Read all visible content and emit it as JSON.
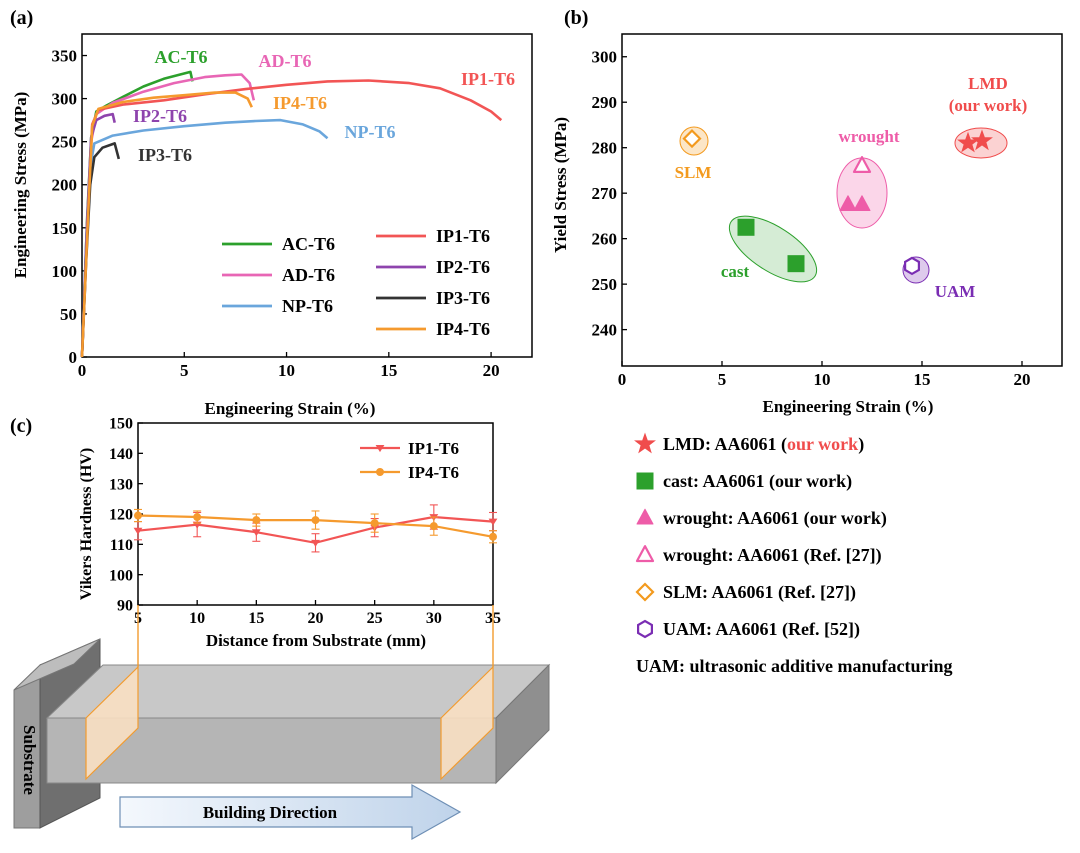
{
  "colors": {
    "ac": "#2ca02c",
    "ad": "#e866b5",
    "np": "#6aa6dc",
    "ip1": "#f25555",
    "ip2": "#8e44ad",
    "ip3": "#333333",
    "ip4": "#f59a2e",
    "lmd": "#f04c4c",
    "cast": "#2ca02c",
    "wrought": "#ee5ca8",
    "slm": "#f39a1e",
    "uam": "#7a2db3"
  },
  "chart_data": [
    {
      "id": "a",
      "panel_label": "(a)",
      "type": "line",
      "xlabel": "Engineering Strain (%)",
      "ylabel": "Engineering Stress (MPa)",
      "xlim": [
        0,
        22
      ],
      "ylim": [
        0,
        375
      ],
      "xticks": [
        0,
        5,
        10,
        15,
        20
      ],
      "yticks": [
        0,
        50,
        100,
        150,
        200,
        250,
        300,
        350
      ],
      "series": [
        {
          "key": "ac",
          "name": "AC-T6",
          "color": "#2ca02c",
          "points": [
            [
              0,
              0
            ],
            [
              0.25,
              160
            ],
            [
              0.45,
              255
            ],
            [
              0.7,
              285
            ],
            [
              1.2,
              292
            ],
            [
              2,
              302
            ],
            [
              3,
              314
            ],
            [
              4,
              323
            ],
            [
              4.8,
              328
            ],
            [
              5.3,
              331
            ],
            [
              5.4,
              320
            ]
          ]
        },
        {
          "key": "ad",
          "name": "AD-T6",
          "color": "#e866b5",
          "points": [
            [
              0,
              0
            ],
            [
              0.25,
              150
            ],
            [
              0.45,
              250
            ],
            [
              0.7,
              282
            ],
            [
              1.5,
              295
            ],
            [
              3,
              308
            ],
            [
              4.5,
              318
            ],
            [
              6,
              325
            ],
            [
              7,
              327
            ],
            [
              7.8,
              328
            ],
            [
              8.2,
              318
            ],
            [
              8.4,
              298
            ]
          ]
        },
        {
          "key": "np",
          "name": "NP-T6",
          "color": "#6aa6dc",
          "points": [
            [
              0,
              0
            ],
            [
              0.2,
              130
            ],
            [
              0.4,
              220
            ],
            [
              0.6,
              248
            ],
            [
              1.5,
              257
            ],
            [
              3,
              263
            ],
            [
              5,
              268
            ],
            [
              7,
              272
            ],
            [
              8.5,
              274
            ],
            [
              9.7,
              275
            ],
            [
              10.8,
              270
            ],
            [
              11.6,
              262
            ],
            [
              12,
              254
            ]
          ]
        },
        {
          "key": "ip1",
          "name": "IP1-T6",
          "color": "#f25555",
          "points": [
            [
              0,
              0
            ],
            [
              0.3,
              170
            ],
            [
              0.5,
              270
            ],
            [
              0.8,
              287
            ],
            [
              2,
              293
            ],
            [
              4,
              298
            ],
            [
              6,
              305
            ],
            [
              8,
              311
            ],
            [
              10,
              316
            ],
            [
              12,
              320
            ],
            [
              14,
              321
            ],
            [
              16,
              318
            ],
            [
              17.5,
              312
            ],
            [
              19,
              298
            ],
            [
              20,
              285
            ],
            [
              20.5,
              275
            ]
          ]
        },
        {
          "key": "ip2",
          "name": "IP2-T6",
          "color": "#8e44ad",
          "points": [
            [
              0,
              0
            ],
            [
              0.25,
              155
            ],
            [
              0.45,
              255
            ],
            [
              0.7,
              275
            ],
            [
              1.1,
              280
            ],
            [
              1.5,
              282
            ],
            [
              1.6,
              272
            ]
          ]
        },
        {
          "key": "ip3",
          "name": "IP3-T6",
          "color": "#333333",
          "points": [
            [
              0,
              0
            ],
            [
              0.2,
              110
            ],
            [
              0.4,
              200
            ],
            [
              0.6,
              232
            ],
            [
              1,
              243
            ],
            [
              1.6,
              248
            ],
            [
              1.8,
              230
            ]
          ]
        },
        {
          "key": "ip4",
          "name": "IP4-T6",
          "color": "#f59a2e",
          "points": [
            [
              0,
              0
            ],
            [
              0.3,
              165
            ],
            [
              0.5,
              268
            ],
            [
              0.8,
              288
            ],
            [
              2,
              296
            ],
            [
              3.5,
              301
            ],
            [
              5,
              304
            ],
            [
              6.5,
              307
            ],
            [
              7.5,
              307
            ],
            [
              8.1,
              300
            ],
            [
              8.3,
              290
            ]
          ]
        }
      ],
      "annotations": [
        {
          "key": "ac",
          "text": "AC-T6"
        },
        {
          "key": "ad",
          "text": "AD-T6"
        },
        {
          "key": "ip1",
          "text": "IP1-T6"
        },
        {
          "key": "ip4",
          "text": "IP4-T6"
        },
        {
          "key": "ip2",
          "text": "IP2-T6"
        },
        {
          "key": "np",
          "text": "NP-T6"
        },
        {
          "key": "ip3",
          "text": "IP3-T6"
        }
      ],
      "legend": {
        "placement": "bottom-right",
        "columns": [
          [
            "ac",
            "ad",
            "np"
          ],
          [
            "ip1",
            "ip2",
            "ip3",
            "ip4"
          ]
        ]
      }
    },
    {
      "id": "b",
      "panel_label": "(b)",
      "type": "scatter",
      "xlabel": "Engineering Strain (%)",
      "ylabel": "Yield Stress (MPa)",
      "xlim": [
        0,
        22
      ],
      "ylim": [
        232,
        305
      ],
      "xticks": [
        0,
        5,
        10,
        15,
        20
      ],
      "yticks": [
        240,
        250,
        260,
        270,
        280,
        290,
        300
      ],
      "groups": [
        {
          "key": "lmd",
          "name": "LMD",
          "label_line2": "(our work)",
          "marker": "star",
          "filled": true,
          "points": [
            [
              17.3,
              281
            ],
            [
              18.0,
              281.5
            ]
          ]
        },
        {
          "key": "cast",
          "name": "cast",
          "marker": "square",
          "filled": true,
          "points": [
            [
              6.2,
              262.5
            ],
            [
              8.7,
              254.5
            ]
          ]
        },
        {
          "key": "wrought",
          "name": "wrought",
          "marker": "triangle",
          "filled": true,
          "points": [
            [
              11.3,
              267.5
            ],
            [
              12.0,
              267.5
            ]
          ]
        },
        {
          "key": "wrought-ref",
          "name": "wrought",
          "marker": "triangle",
          "filled": false,
          "points": [
            [
              12.0,
              276
            ]
          ]
        },
        {
          "key": "slm",
          "name": "SLM",
          "marker": "diamond",
          "filled": false,
          "points": [
            [
              3.5,
              282
            ]
          ]
        },
        {
          "key": "uam",
          "name": "UAM",
          "marker": "hexagon",
          "filled": false,
          "points": [
            [
              14.5,
              254
            ]
          ]
        }
      ],
      "legend_entries": [
        {
          "marker": "star",
          "color": "#f04c4c",
          "filled": true,
          "text": "LMD: AA6061 (",
          "highlight": "our work",
          "text_end": ")"
        },
        {
          "marker": "square",
          "color": "#2ca02c",
          "filled": true,
          "text": "cast: AA6061 (our work)"
        },
        {
          "marker": "triangle",
          "color": "#ee5ca8",
          "filled": true,
          "text": "wrought: AA6061 (our work)"
        },
        {
          "marker": "triangle",
          "color": "#ee5ca8",
          "filled": false,
          "text": "wrought: AA6061 (Ref. [27])"
        },
        {
          "marker": "diamond",
          "color": "#f39a1e",
          "filled": false,
          "text": "SLM: AA6061 (Ref. [27])"
        },
        {
          "marker": "hexagon",
          "color": "#7a2db3",
          "filled": false,
          "text": "UAM: AA6061 (Ref. [52])"
        },
        {
          "marker": "none",
          "color": "#000000",
          "filled": false,
          "text": "UAM: ultrasonic additive manufacturing"
        }
      ]
    },
    {
      "id": "c",
      "panel_label": "(c)",
      "type": "line",
      "xlabel": "Distance from Substrate (mm)",
      "ylabel": "Vikers Hardness (HV)",
      "xlim": [
        5,
        35
      ],
      "ylim": [
        90,
        150
      ],
      "xticks": [
        5,
        10,
        15,
        20,
        25,
        30,
        35
      ],
      "yticks": [
        90,
        100,
        110,
        120,
        130,
        140,
        150
      ],
      "series": [
        {
          "key": "ip1",
          "name": "IP1-T6",
          "color": "#f25555",
          "marker": "triangle-down",
          "x": [
            5,
            10,
            15,
            20,
            25,
            30,
            35
          ],
          "values": [
            114.5,
            116.5,
            114,
            110.5,
            115.5,
            119,
            117.5
          ],
          "errors": [
            3,
            4,
            3,
            3,
            3,
            4,
            3
          ]
        },
        {
          "key": "ip4",
          "name": "IP4-T6",
          "color": "#f59a2e",
          "marker": "circle",
          "x": [
            5,
            10,
            15,
            20,
            25,
            30,
            35
          ],
          "values": [
            119.5,
            119,
            118,
            118,
            117,
            116,
            112.5
          ],
          "errors": [
            2,
            2,
            2,
            3,
            3,
            3,
            2
          ]
        }
      ]
    }
  ],
  "illustration": {
    "substrate_label": "Substrate",
    "direction_label": "Building Direction"
  }
}
